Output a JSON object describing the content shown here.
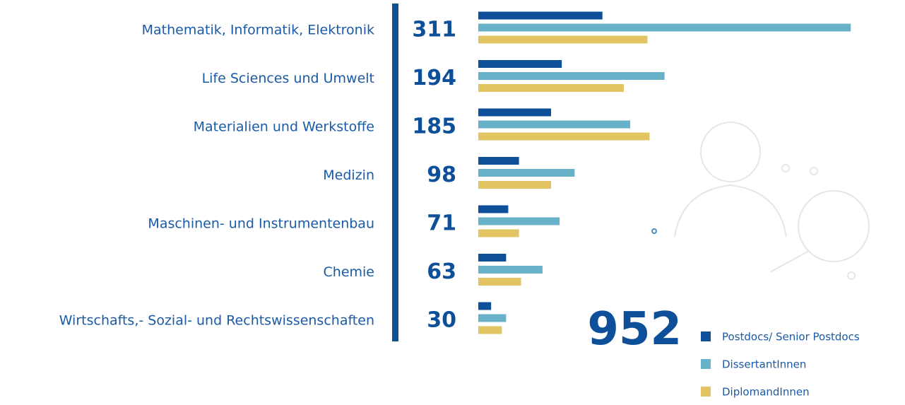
{
  "chart_data": {
    "type": "grouped-hbar",
    "categories": [
      "Mathematik, Informatik, Elektronik",
      "Life Sciences und Umwelt",
      "Materialien und Werkstoffe",
      "Medizin",
      "Maschinen- und Instrumentenbau",
      "Chemie",
      "Wirtschafts,- Sozial- und Rechtswissenschaften"
    ],
    "totals": [
      311,
      194,
      185,
      98,
      71,
      63,
      30
    ],
    "total": 952,
    "series": [
      {
        "name": "Postdocs/ Senior Postdocs",
        "color": "#0d4f99",
        "values": [
          58,
          39,
          34,
          19,
          14,
          13,
          6
        ]
      },
      {
        "name": "DissertantInnen",
        "color": "#67b2c9",
        "values": [
          174,
          87,
          71,
          45,
          38,
          30,
          13
        ]
      },
      {
        "name": "DiplomandInnen",
        "color": "#e3c463",
        "values": [
          79,
          68,
          80,
          34,
          19,
          20,
          11
        ]
      }
    ]
  }
}
